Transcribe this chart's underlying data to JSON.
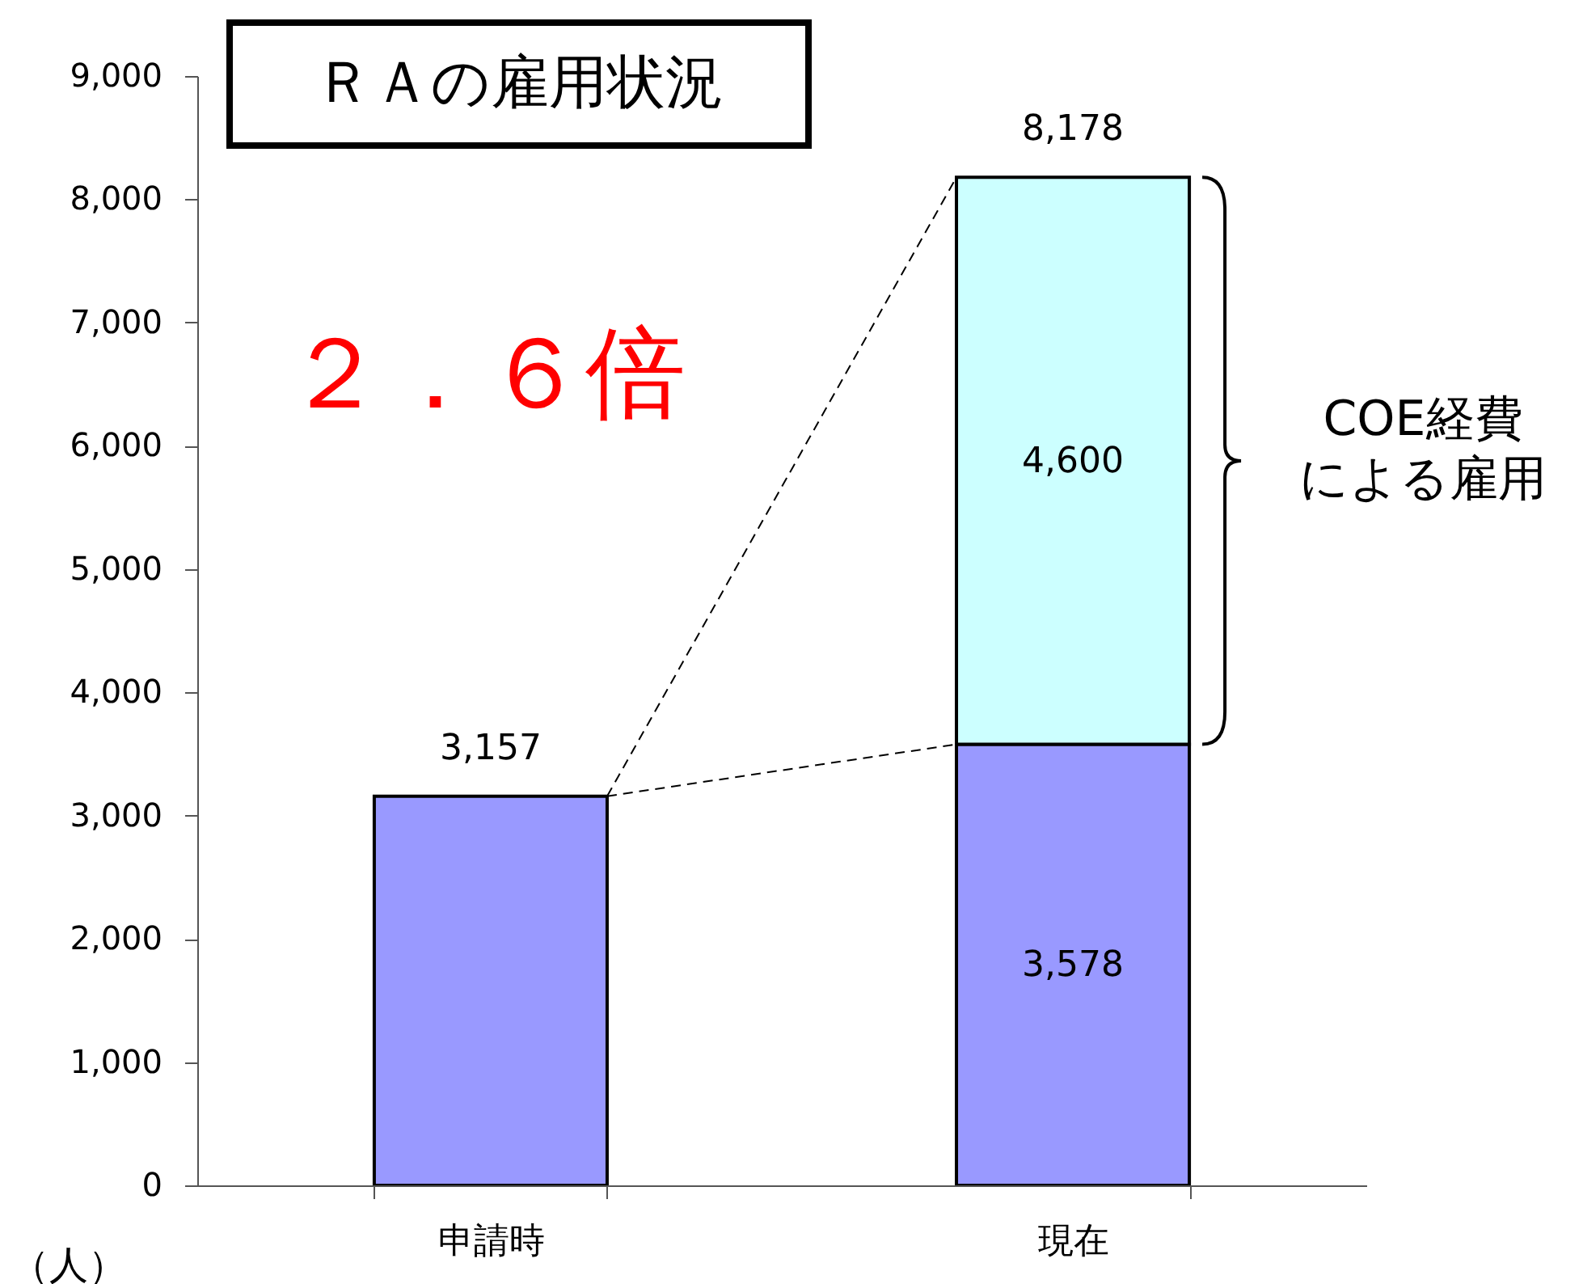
{
  "chart_data": {
    "type": "bar",
    "title": "ＲＡの雇用状況",
    "ylabel": "（人）",
    "stacked": true,
    "categories": [
      "申請時",
      "現在"
    ],
    "series": [
      {
        "color": "#9999ff",
        "values": [
          3157,
          3578
        ],
        "value_labels": [
          null,
          "3,578"
        ]
      },
      {
        "color": "#ccffff",
        "values": [
          null,
          4600
        ],
        "value_labels": [
          null,
          "4,600"
        ]
      }
    ],
    "totals": [
      "3,157",
      "8,178"
    ],
    "annotations": [
      "２．６倍",
      "COE経費",
      "による雇用"
    ],
    "ylim": [
      0,
      9000
    ],
    "yticks": [
      0,
      {
        "value": 1000,
        "label": "1,000"
      },
      {
        "value": 2000,
        "label": "2,000"
      },
      {
        "value": 3000,
        "label": "3,000"
      },
      {
        "value": 4000,
        "label": "4,000"
      },
      {
        "value": 5000,
        "label": "5,000"
      },
      {
        "value": 6000,
        "label": "6,000"
      },
      {
        "value": 7000,
        "label": "7,000"
      },
      {
        "value": 8000,
        "label": "8,000"
      },
      {
        "value": 9000,
        "label": "9,000"
      }
    ],
    "grid": false
  }
}
